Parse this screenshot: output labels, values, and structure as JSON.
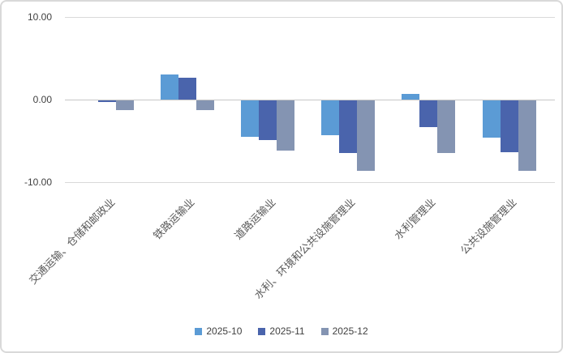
{
  "chart_data": {
    "type": "bar",
    "title": "",
    "categories": [
      "交通运输、仓储和邮政业",
      "铁路运输业",
      "道路运输业",
      "水利、环境和公共设施管理业",
      "水利管理业",
      "公共设施管理业"
    ],
    "series": [
      {
        "name": "2025-10",
        "color": "#5B9BD5",
        "values": [
          0.0,
          3.0,
          -4.4,
          -4.2,
          0.7,
          -4.5
        ]
      },
      {
        "name": "2025-11",
        "color": "#4A64AC",
        "values": [
          -0.2,
          2.6,
          -4.8,
          -6.4,
          -3.2,
          -6.3
        ]
      },
      {
        "name": "2025-12",
        "color": "#8494B2",
        "values": [
          -1.2,
          -1.2,
          -6.1,
          -8.5,
          -6.4,
          -8.5
        ]
      }
    ],
    "y_ticks": [
      {
        "value": 10,
        "label": "10.00"
      },
      {
        "value": 0,
        "label": "0.00"
      },
      {
        "value": -10,
        "label": "-10.00"
      }
    ],
    "ylim": [
      -10,
      10
    ],
    "grid": true,
    "legend_position": "bottom"
  },
  "style": {
    "grid_color": "#D9D9D9",
    "zero_line_color": "#C6C6C6",
    "tick_text_color": "#404040",
    "category_text_color": "#595959",
    "legend_text_color": "#404040",
    "chart_border_color": "#D9D9D9",
    "background": "#FFFFFF"
  }
}
